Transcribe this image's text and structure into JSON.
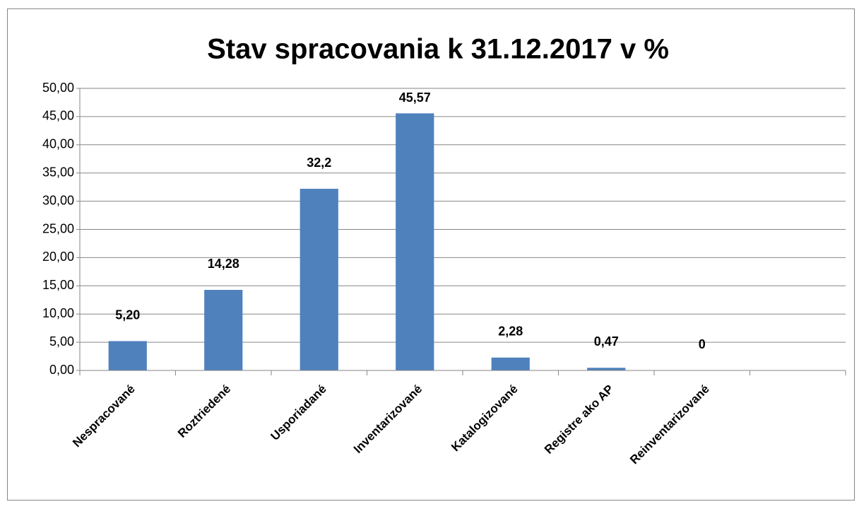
{
  "chart_data": {
    "type": "bar",
    "title": "Stav spracovania k 31.12.2017 v %",
    "categories": [
      "Nespracované",
      "Roztriedené",
      "Usporiadané",
      "Inventarizované",
      "Katalogizované",
      "Registre ako AP",
      "Reinventarizované",
      null
    ],
    "values": [
      5.2,
      14.28,
      32.2,
      45.57,
      2.28,
      0.47,
      0,
      null
    ],
    "value_labels": [
      "5,20",
      "14,28",
      "32,2",
      "45,57",
      "2,28",
      "0,47",
      "0",
      null
    ],
    "color": "#4f81bd",
    "ylim": [
      0,
      50
    ],
    "yticks": [
      {
        "value": 0,
        "label": "0,00"
      },
      {
        "value": 5,
        "label": "5,00"
      },
      {
        "value": 10,
        "label": "10,00"
      },
      {
        "value": 15,
        "label": "15,00"
      },
      {
        "value": 20,
        "label": "20,00"
      },
      {
        "value": 25,
        "label": "25,00"
      },
      {
        "value": 30,
        "label": "30,00"
      },
      {
        "value": 35,
        "label": "35,00"
      },
      {
        "value": 40,
        "label": "40,00"
      },
      {
        "value": 45,
        "label": "45,00"
      },
      {
        "value": 50,
        "label": "50,00"
      }
    ],
    "grid": true
  }
}
